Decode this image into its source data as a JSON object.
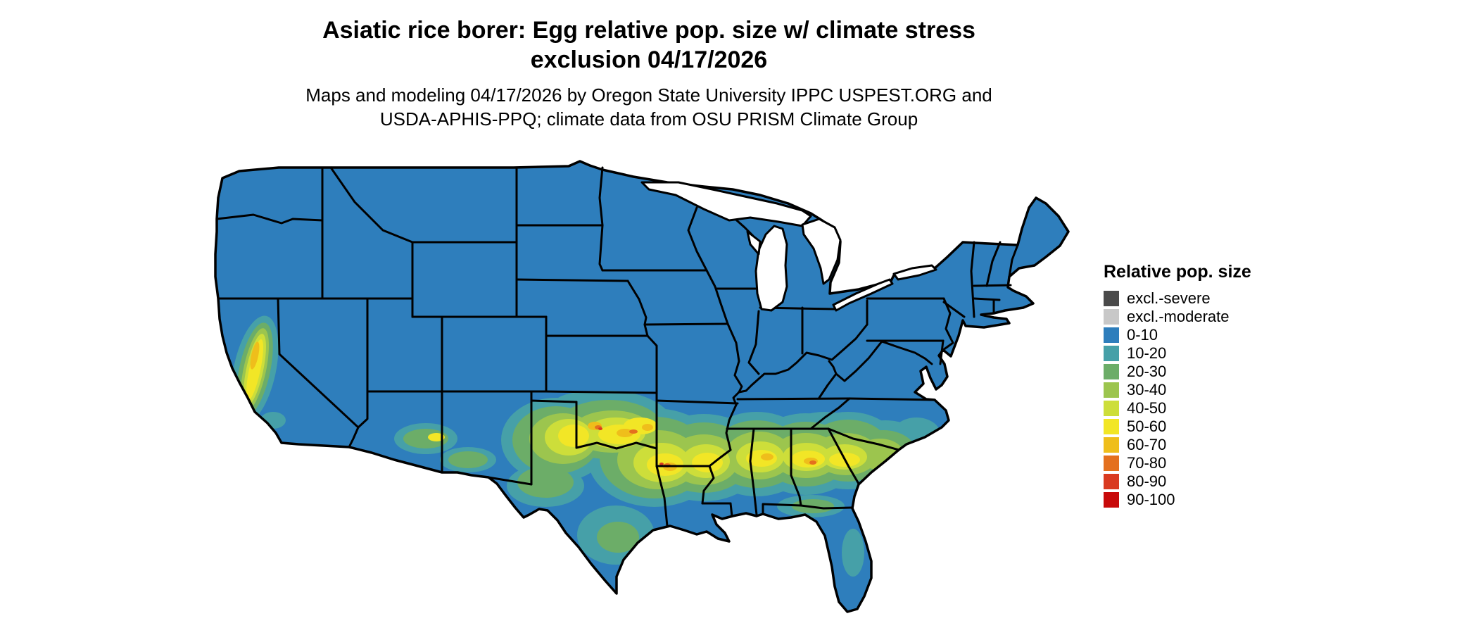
{
  "title": {
    "line1": "Asiatic rice borer: Egg relative pop. size w/ climate stress",
    "line2": "exclusion 04/17/2026"
  },
  "subtitle": {
    "line1": "Maps and modeling 04/17/2026 by Oregon State University IPPC USPEST.ORG and",
    "line2": "USDA-APHIS-PPQ; climate data from OSU PRISM Climate Group"
  },
  "legend": {
    "title": "Relative pop. size",
    "items": [
      {
        "label": "excl.-severe",
        "color": "#4a4a4a"
      },
      {
        "label": "excl.-moderate",
        "color": "#c8c8c8"
      },
      {
        "label": "0-10",
        "color": "#2E7EBC"
      },
      {
        "label": "10-20",
        "color": "#46A0A8"
      },
      {
        "label": "20-30",
        "color": "#6CAD68"
      },
      {
        "label": "30-40",
        "color": "#9CC54E"
      },
      {
        "label": "40-50",
        "color": "#CDDE3A"
      },
      {
        "label": "50-60",
        "color": "#F2E626"
      },
      {
        "label": "60-70",
        "color": "#EFBE1B"
      },
      {
        "label": "70-80",
        "color": "#E4701E"
      },
      {
        "label": "80-90",
        "color": "#D93A20"
      },
      {
        "label": "90-100",
        "color": "#C80A0A"
      }
    ]
  },
  "map": {
    "border_color": "#000000",
    "water_color": "#ffffff",
    "base_class": "0-10"
  }
}
